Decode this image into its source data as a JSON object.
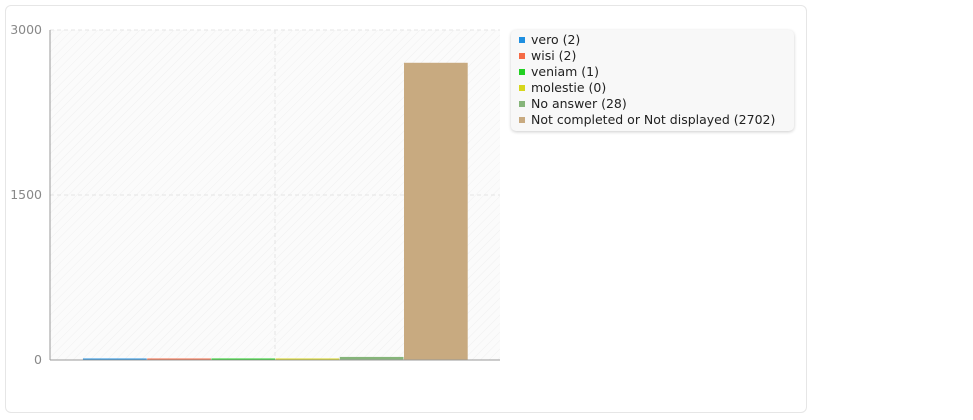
{
  "chart_data": {
    "type": "bar",
    "categories": [
      "vero (2)",
      "wisi (2)",
      "veniam (1)",
      "molestie (0)",
      "No answer (28)",
      "Not completed or Not displayed (2702)"
    ],
    "values": [
      2,
      2,
      1,
      0,
      28,
      2702
    ],
    "colors": [
      "#1f8fe0",
      "#f56a45",
      "#22d022",
      "#d6d61c",
      "#86b57a",
      "#c8aa80"
    ],
    "ylim": [
      0,
      3000
    ],
    "yticks": [
      "0",
      "1500",
      "3000"
    ],
    "grid": true,
    "legend_placement": "right"
  }
}
